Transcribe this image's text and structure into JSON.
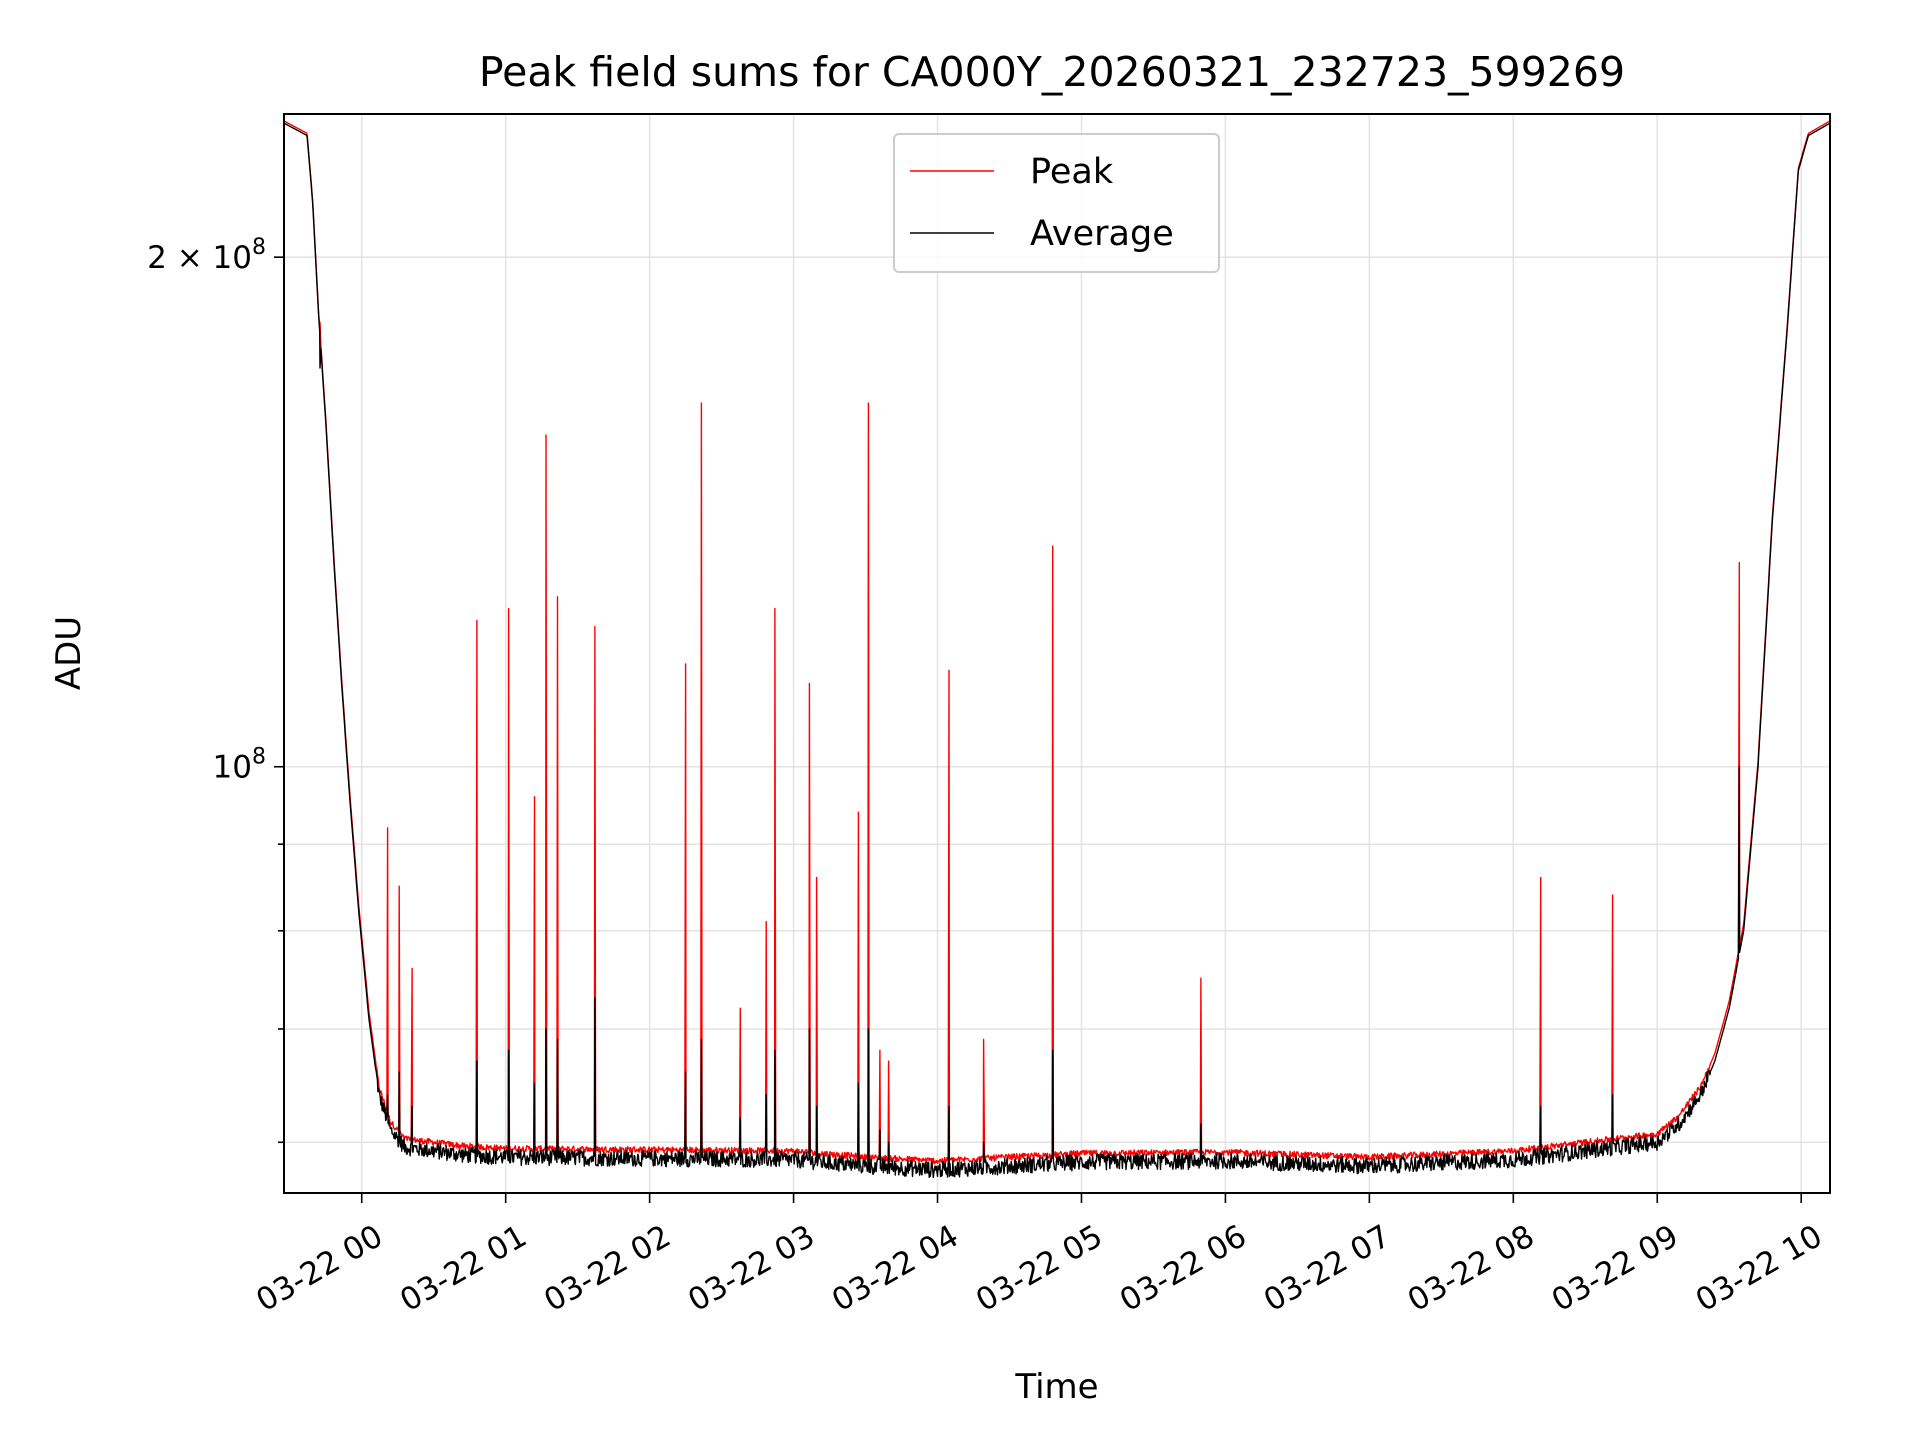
{
  "chart_data": {
    "type": "line",
    "title": "Peak field sums for CA000Y_20260321_232723_599269",
    "xlabel": "Time",
    "ylabel": "ADU",
    "yscale": "log",
    "x_units": "hours after 2026-03-22 00:00",
    "xlim": [
      -0.54,
      10.2
    ],
    "ylim": [
      56000000,
      243000000
    ],
    "grid": true,
    "legend_position": "upper-center",
    "x_ticks": [
      {
        "value": 0,
        "label": "03-22 00"
      },
      {
        "value": 1,
        "label": "03-22 01"
      },
      {
        "value": 2,
        "label": "03-22 02"
      },
      {
        "value": 3,
        "label": "03-22 03"
      },
      {
        "value": 4,
        "label": "03-22 04"
      },
      {
        "value": 5,
        "label": "03-22 05"
      },
      {
        "value": 6,
        "label": "03-22 06"
      },
      {
        "value": 7,
        "label": "03-22 07"
      },
      {
        "value": 8,
        "label": "03-22 08"
      },
      {
        "value": 9,
        "label": "03-22 09"
      },
      {
        "value": 10,
        "label": "03-22 10"
      }
    ],
    "y_major_ticks": [
      {
        "value": 100000000,
        "label": "10",
        "exp": "8",
        "prefix": ""
      },
      {
        "value": 200000000,
        "label": "10",
        "exp": "8",
        "prefix": "2 × "
      }
    ],
    "y_minor_ticks": [
      60000000,
      70000000,
      80000000,
      90000000
    ],
    "series": [
      {
        "name": "Average",
        "color": "#000000",
        "baseline": [
          [
            -0.54,
            240000000
          ],
          [
            -0.38,
            236000000
          ],
          [
            -0.34,
            215000000
          ],
          [
            -0.3,
            185000000
          ],
          [
            -0.25,
            160000000
          ],
          [
            -0.2,
            135000000
          ],
          [
            -0.14,
            112000000
          ],
          [
            -0.08,
            95000000
          ],
          [
            -0.02,
            82000000
          ],
          [
            0.05,
            71000000
          ],
          [
            0.12,
            64000000
          ],
          [
            0.2,
            61000000
          ],
          [
            0.3,
            59600000
          ],
          [
            0.5,
            59300000
          ],
          [
            0.7,
            59000000
          ],
          [
            1.0,
            58800000
          ],
          [
            2.0,
            58700000
          ],
          [
            3.0,
            58600000
          ],
          [
            3.5,
            58100000
          ],
          [
            4.0,
            57800000
          ],
          [
            4.5,
            58100000
          ],
          [
            5.0,
            58400000
          ],
          [
            6.0,
            58500000
          ],
          [
            7.0,
            58100000
          ],
          [
            8.0,
            58600000
          ],
          [
            8.5,
            59300000
          ],
          [
            9.0,
            60000000
          ],
          [
            9.15,
            61500000
          ],
          [
            9.3,
            64000000
          ],
          [
            9.4,
            67000000
          ],
          [
            9.5,
            72000000
          ],
          [
            9.6,
            80000000
          ],
          [
            9.7,
            100000000
          ],
          [
            9.8,
            140000000
          ],
          [
            9.9,
            180000000
          ],
          [
            9.98,
            225000000
          ],
          [
            10.05,
            236000000
          ],
          [
            10.2,
            240000000
          ]
        ]
      },
      {
        "name": "Peak",
        "color": "#ff0000",
        "offset": 700000
      }
    ],
    "peak_spikes": [
      [
        -0.29,
        183000000,
        172000000
      ],
      [
        0.18,
        92000000,
        64000000
      ],
      [
        0.26,
        85000000,
        66000000
      ],
      [
        0.35,
        76000000,
        63000000
      ],
      [
        0.8,
        122000000,
        67000000
      ],
      [
        1.02,
        124000000,
        68000000
      ],
      [
        1.2,
        96000000,
        65000000
      ],
      [
        1.28,
        157000000,
        70000000
      ],
      [
        1.36,
        126000000,
        69000000
      ],
      [
        1.62,
        121000000,
        73000000
      ],
      [
        2.25,
        115000000,
        66000000
      ],
      [
        2.36,
        164000000,
        69000000
      ],
      [
        2.63,
        72000000,
        62000000
      ],
      [
        2.81,
        81000000,
        64000000
      ],
      [
        2.87,
        124000000,
        68000000
      ],
      [
        3.11,
        112000000,
        70000000
      ],
      [
        3.16,
        86000000,
        63000000
      ],
      [
        3.45,
        94000000,
        65000000
      ],
      [
        3.52,
        164000000,
        70000000
      ],
      [
        3.6,
        68000000,
        61000000
      ],
      [
        3.66,
        67000000,
        60000000
      ],
      [
        4.08,
        114000000,
        63000000
      ],
      [
        4.32,
        69000000,
        60000000
      ],
      [
        4.8,
        135000000,
        68000000
      ],
      [
        5.83,
        75000000,
        61500000
      ],
      [
        8.19,
        86000000,
        63000000
      ],
      [
        8.69,
        84000000,
        64000000
      ],
      [
        9.57,
        132000000,
        100000000
      ]
    ]
  },
  "legend": {
    "items": [
      {
        "label": "Peak",
        "color": "#ff0000"
      },
      {
        "label": "Average",
        "color": "#000000"
      }
    ]
  }
}
